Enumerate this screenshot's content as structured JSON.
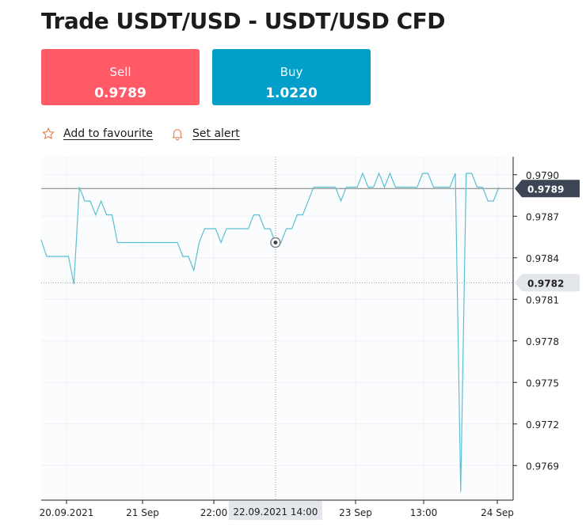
{
  "title": "Trade USDT/USD - USDT/USD CFD",
  "sell": {
    "label": "Sell",
    "price": "0.9789"
  },
  "buy": {
    "label": "Buy",
    "price": "1.0220"
  },
  "actions": {
    "favourite_label": "Add to favourite",
    "alert_label": "Set alert"
  },
  "colors": {
    "sell": "#ff5a66",
    "buy": "#029fcb",
    "line": "#5cc0d3",
    "tag_dark": "#3b4553",
    "tag_light": "#e3e6ea"
  },
  "icons": {
    "favourite": "star-outline-icon",
    "alert": "bell-outline-icon"
  },
  "chart_data": {
    "type": "line",
    "ylim": [
      0.97665,
      0.97913
    ],
    "y_ticks": [
      "0.9790",
      "0.9787",
      "0.9784",
      "0.9781",
      "0.9778",
      "0.9775",
      "0.9772",
      "0.9769"
    ],
    "x_ticks": [
      "20.09.2021",
      "21 Sep",
      "22:00",
      "23 Sep",
      "13:00",
      "24 Sep"
    ],
    "crosshair_label": "22.09.2021 14:00",
    "price_tags": [
      {
        "label": "0.9789",
        "value": 0.9789,
        "style": "dark"
      },
      {
        "label": "0.9782",
        "value": 0.97822,
        "style": "light"
      }
    ],
    "series": [
      {
        "values": [
          0.97853,
          0.97841,
          0.97841,
          0.97841,
          0.97841,
          0.97841,
          0.97821,
          0.97891,
          0.97881,
          0.97881,
          0.97871,
          0.97881,
          0.97871,
          0.97871,
          0.97851,
          0.97851,
          0.97851,
          0.97851,
          0.97851,
          0.97851,
          0.97851,
          0.97851,
          0.97851,
          0.97851,
          0.97851,
          0.97851,
          0.97841,
          0.97841,
          0.97831,
          0.97851,
          0.97861,
          0.97861,
          0.97861,
          0.97851,
          0.97861,
          0.97861,
          0.97861,
          0.97861,
          0.97861,
          0.97871,
          0.97871,
          0.97861,
          0.97861,
          0.97851,
          0.97851,
          0.97861,
          0.97861,
          0.97871,
          0.97871,
          0.97881,
          0.97891,
          0.97891,
          0.97891,
          0.97891,
          0.97891,
          0.97881,
          0.97891,
          0.97891,
          0.97891,
          0.97901,
          0.97891,
          0.97891,
          0.97901,
          0.97891,
          0.97901,
          0.97891,
          0.97891,
          0.97891,
          0.97891,
          0.97891,
          0.97901,
          0.97901,
          0.97891,
          0.97891,
          0.97891,
          0.97891,
          0.97901,
          0.97671,
          0.97901,
          0.97901,
          0.97891,
          0.97891,
          0.97881,
          0.97881,
          0.97891
        ]
      }
    ],
    "marker_index": 43
  }
}
